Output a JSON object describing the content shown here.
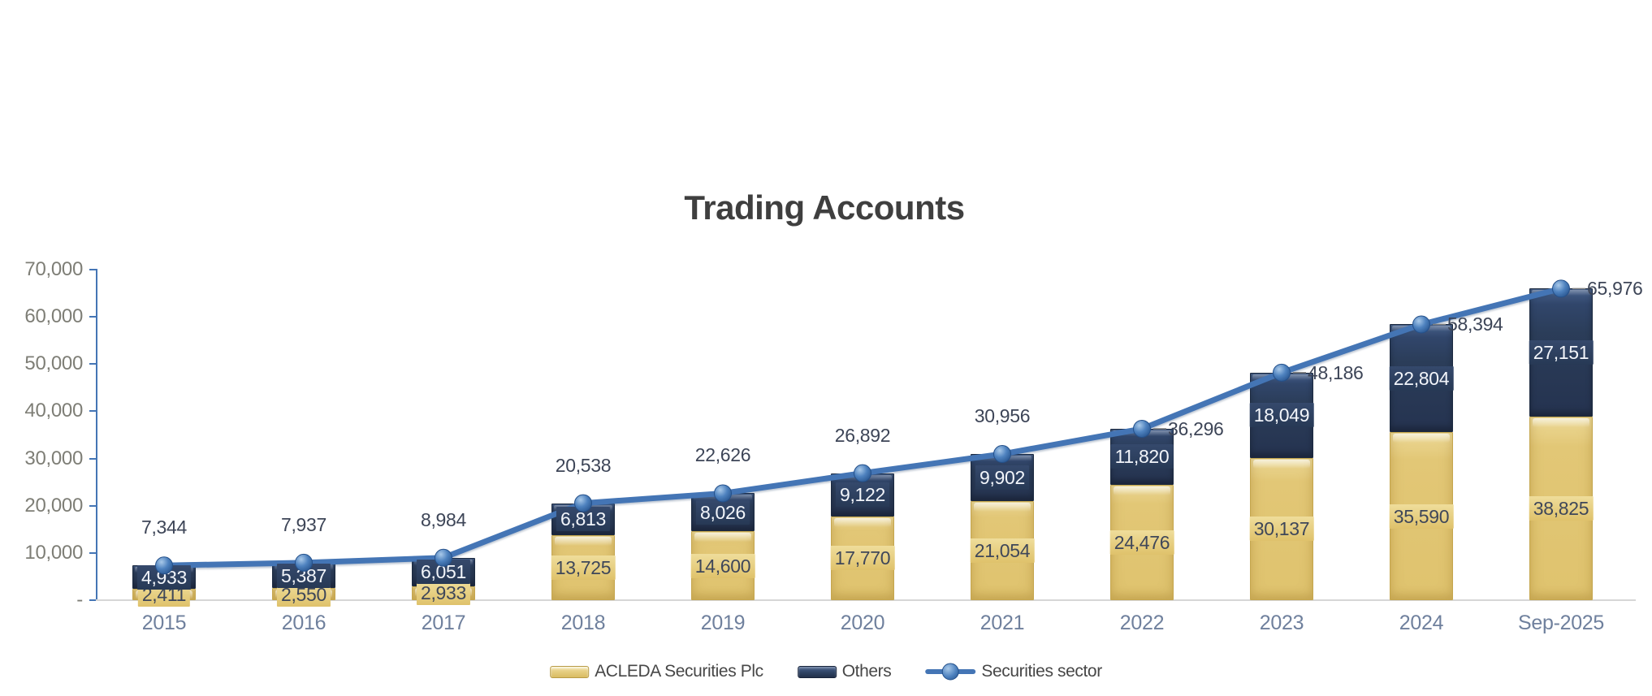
{
  "chart_data": {
    "type": "bar",
    "subtype": "stacked-columns-with-total-line",
    "title": "Trading Accounts",
    "categories": [
      "2015",
      "2016",
      "2017",
      "2018",
      "2019",
      "2020",
      "2021",
      "2022",
      "2023",
      "2024",
      "Sep-2025"
    ],
    "series": [
      {
        "name": "ACLEDA Securities Plc",
        "type": "column",
        "color": "#E2C672",
        "values": [
          2411,
          2550,
          2933,
          13725,
          14600,
          17770,
          21054,
          24476,
          30137,
          35590,
          38825
        ]
      },
      {
        "name": "Others",
        "type": "column",
        "color": "#2B3D59",
        "values": [
          4933,
          5387,
          6051,
          6813,
          8026,
          9122,
          9902,
          11820,
          18049,
          22804,
          27151
        ]
      },
      {
        "name": "Securities sector",
        "type": "line",
        "color": "#4475B5",
        "values": [
          7344,
          7937,
          8984,
          20538,
          22626,
          26892,
          30956,
          36296,
          48186,
          58394,
          65976
        ],
        "label_positions": [
          "above",
          "above",
          "above",
          "above",
          "above",
          "above",
          "above",
          "right",
          "right",
          "right",
          "right"
        ]
      }
    ],
    "ylim": [
      0,
      70000
    ],
    "yticks": [
      {
        "value": 0,
        "label": "-"
      },
      {
        "value": 10000,
        "label": "10,000"
      },
      {
        "value": 20000,
        "label": "20,000"
      },
      {
        "value": 30000,
        "label": "30,000"
      },
      {
        "value": 40000,
        "label": "40,000"
      },
      {
        "value": 50000,
        "label": "50,000"
      },
      {
        "value": 60000,
        "label": "60,000"
      },
      {
        "value": 70000,
        "label": "70,000"
      }
    ],
    "grid": false,
    "legend_position": "bottom"
  },
  "style": {
    "accent_blue": "#4475B5",
    "bar_gold": "#E2C672",
    "bar_navy": "#2B3D59",
    "title_color": "#3F3F3F",
    "y_label_color": "#7E7E76",
    "x_label_color": "#6F809D",
    "value_label_color": "#3D4557",
    "leader_line_color": "#7F7F7F"
  }
}
